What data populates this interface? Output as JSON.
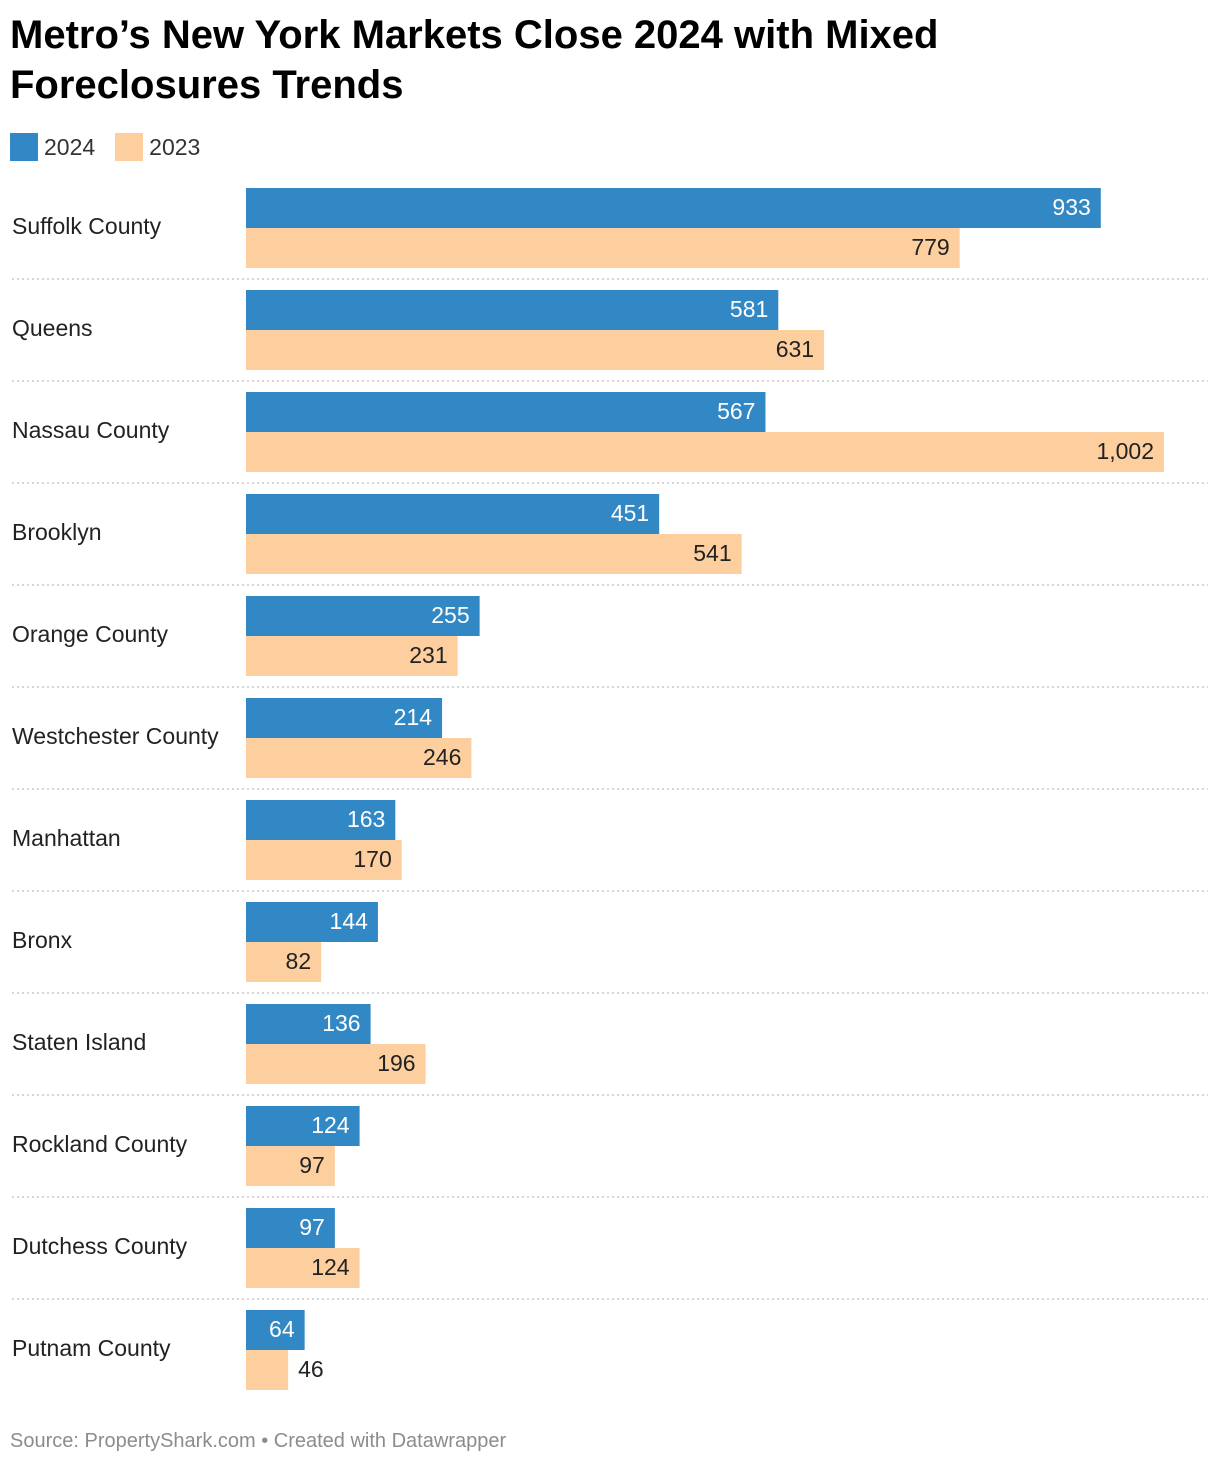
{
  "title": "Metro’s New York Markets Close 2024 with Mixed Foreclosures Trends",
  "legend": [
    {
      "label": "2024",
      "color": "#3288c4"
    },
    {
      "label": "2023",
      "color": "#fdcf9f"
    }
  ],
  "footer": "Source: PropertyShark.com • Created with Datawrapper",
  "chart_data": {
    "type": "bar",
    "orientation": "horizontal",
    "categories": [
      "Suffolk County",
      "Queens",
      "Nassau County",
      "Brooklyn",
      "Orange County",
      "Westchester County",
      "Manhattan",
      "Bronx",
      "Staten Island",
      "Rockland County",
      "Dutchess County",
      "Putnam County"
    ],
    "series": [
      {
        "name": "2024",
        "color": "#3288c4",
        "values": [
          933,
          581,
          567,
          451,
          255,
          214,
          163,
          144,
          136,
          124,
          97,
          64
        ],
        "labels": [
          "933",
          "581",
          "567",
          "451",
          "255",
          "214",
          "163",
          "144",
          "136",
          "124",
          "97",
          "64"
        ]
      },
      {
        "name": "2023",
        "color": "#fdcf9f",
        "values": [
          779,
          631,
          1002,
          541,
          231,
          246,
          170,
          82,
          196,
          97,
          124,
          46
        ],
        "labels": [
          "779",
          "631",
          "1,002",
          "541",
          "231",
          "246",
          "170",
          "82",
          "196",
          "97",
          "124",
          "46"
        ]
      }
    ],
    "xlim": [
      0,
      1002
    ],
    "grid": false,
    "legend_position": "top-left"
  }
}
